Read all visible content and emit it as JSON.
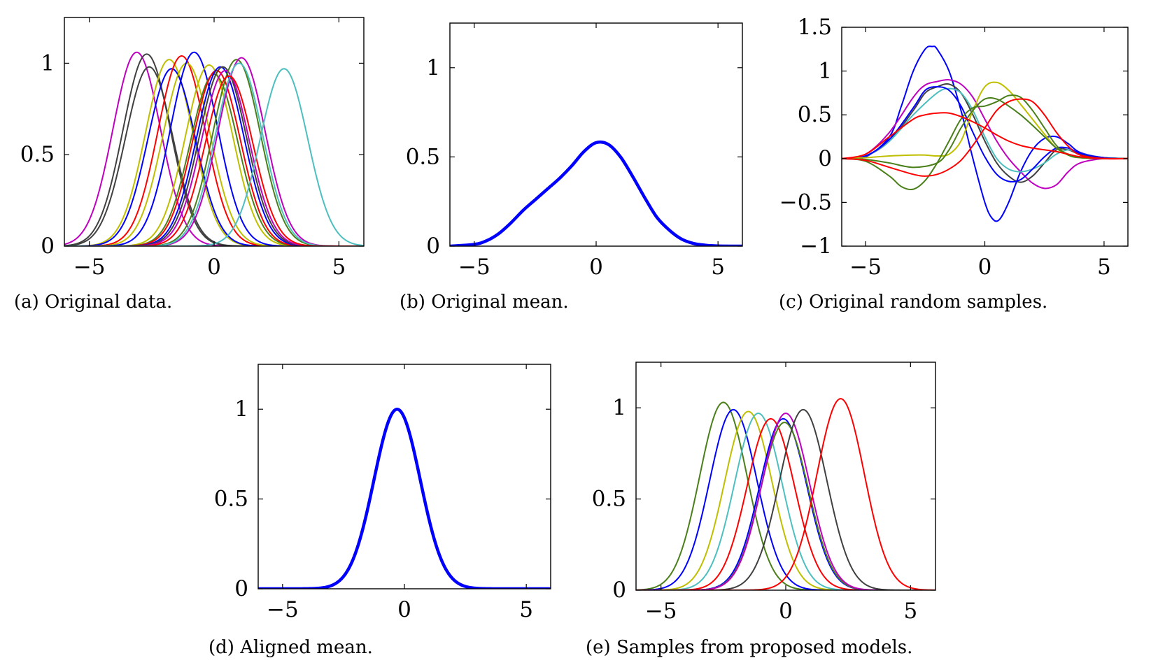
{
  "chart_data": [
    {
      "id": "a",
      "type": "line",
      "caption": "(a) Original data.",
      "xlim": [
        -6,
        6
      ],
      "ylim": [
        0,
        1.25
      ],
      "xticks": [
        -5,
        0,
        5
      ],
      "xtick_labels": [
        "−5",
        "0",
        "5"
      ],
      "yticks": [
        0,
        0.5,
        1
      ],
      "ytick_labels": [
        "0",
        "0.5",
        "1"
      ],
      "line_width": "thin",
      "series": [
        {
          "color": "#bf00bf",
          "peak_x": -3.1,
          "peak_y": 1.06
        },
        {
          "color": "#404040",
          "peak_x": -2.7,
          "peak_y": 1.05
        },
        {
          "color": "#404040",
          "peak_x": -2.6,
          "peak_y": 0.98
        },
        {
          "color": "#bfbf00",
          "peak_x": -1.8,
          "peak_y": 1.02
        },
        {
          "color": "#0000ff",
          "peak_x": -1.7,
          "peak_y": 0.97
        },
        {
          "color": "#ff0000",
          "peak_x": -1.3,
          "peak_y": 1.04
        },
        {
          "color": "#bfbf00",
          "peak_x": -1.1,
          "peak_y": 1.0
        },
        {
          "color": "#0000ff",
          "peak_x": -0.8,
          "peak_y": 1.06
        },
        {
          "color": "#bfbf00",
          "peak_x": -0.2,
          "peak_y": 0.99
        },
        {
          "color": "#4a7f1a",
          "peak_x": 0.0,
          "peak_y": 0.94
        },
        {
          "color": "#ff0000",
          "peak_x": 0.1,
          "peak_y": 0.96
        },
        {
          "color": "#0000ff",
          "peak_x": 0.25,
          "peak_y": 0.98
        },
        {
          "color": "#404040",
          "peak_x": 0.35,
          "peak_y": 0.98
        },
        {
          "color": "#bf00bf",
          "peak_x": 0.45,
          "peak_y": 0.96
        },
        {
          "color": "#4a7f1a",
          "peak_x": 0.9,
          "peak_y": 1.02
        },
        {
          "color": "#bf00bf",
          "peak_x": 1.1,
          "peak_y": 1.03
        },
        {
          "color": "#4dbfbf",
          "peak_x": 1.0,
          "peak_y": 1.0
        },
        {
          "color": "#ff0000",
          "peak_x": 0.6,
          "peak_y": 0.93
        },
        {
          "color": "#4dbfbf",
          "peak_x": 2.8,
          "peak_y": 0.97
        }
      ]
    },
    {
      "id": "b",
      "type": "line",
      "caption": "(b) Original mean.",
      "xlim": [
        -6,
        6
      ],
      "ylim": [
        0,
        1.25
      ],
      "xticks": [
        -5,
        0,
        5
      ],
      "xtick_labels": [
        "−5",
        "0",
        "5"
      ],
      "yticks": [
        0,
        0.5,
        1
      ],
      "ytick_labels": [
        "0",
        "0.5",
        "1"
      ],
      "line_width": "thick",
      "series": [
        {
          "color": "#0000ff",
          "x": [
            -6,
            -5,
            -4.5,
            -4,
            -3.5,
            -3,
            -2.5,
            -2,
            -1.5,
            -1,
            -0.5,
            0,
            0.5,
            1,
            1.5,
            2,
            2.5,
            3,
            3.5,
            4,
            4.5,
            5,
            6
          ],
          "y": [
            0.0,
            0.01,
            0.03,
            0.07,
            0.13,
            0.2,
            0.26,
            0.32,
            0.38,
            0.45,
            0.53,
            0.58,
            0.57,
            0.5,
            0.39,
            0.27,
            0.16,
            0.09,
            0.04,
            0.015,
            0.005,
            0.001,
            0.0
          ]
        }
      ]
    },
    {
      "id": "c",
      "type": "line",
      "caption": "(c) Original random samples.",
      "xlim": [
        -6,
        6
      ],
      "ylim": [
        -1,
        1.5
      ],
      "xticks": [
        -5,
        0,
        5
      ],
      "xtick_labels": [
        "−5",
        "0",
        "5"
      ],
      "yticks": [
        -1,
        -0.5,
        0,
        0.5,
        1,
        1.5
      ],
      "ytick_labels": [
        "−1",
        "−0.5",
        "0",
        "0.5",
        "1",
        "1.5"
      ],
      "line_width": "thin",
      "series": [
        {
          "color": "#0000ff",
          "x": [
            -6,
            -5,
            -4,
            -3.5,
            -3,
            -2.5,
            -2.2,
            -2,
            -1.5,
            -1,
            -0.5,
            0,
            0.3,
            0.6,
            1,
            1.5,
            2,
            2.5,
            3,
            3.5,
            4,
            5,
            6
          ],
          "y": [
            0,
            0.02,
            0.25,
            0.6,
            1.0,
            1.25,
            1.28,
            1.25,
            1.0,
            0.55,
            0.0,
            -0.5,
            -0.68,
            -0.7,
            -0.5,
            -0.15,
            0.1,
            0.23,
            0.25,
            0.17,
            0.07,
            0.01,
            0
          ]
        },
        {
          "color": "#bf00bf",
          "x": [
            -6,
            -5,
            -4,
            -3,
            -2.5,
            -2,
            -1.5,
            -1,
            -0.5,
            0,
            0.5,
            1,
            1.5,
            2,
            2.5,
            3,
            3.5,
            4,
            5,
            6
          ],
          "y": [
            0,
            0.05,
            0.3,
            0.7,
            0.84,
            0.88,
            0.9,
            0.85,
            0.7,
            0.45,
            0.2,
            0.0,
            -0.15,
            -0.28,
            -0.34,
            -0.3,
            -0.15,
            -0.05,
            0,
            0
          ]
        },
        {
          "color": "#404040",
          "x": [
            -6,
            -5,
            -4,
            -3,
            -2.5,
            -2,
            -1.5,
            -1,
            -0.5,
            0,
            0.5,
            1,
            1.5,
            2,
            2.5,
            3,
            3.5,
            4,
            5,
            6
          ],
          "y": [
            0,
            0.03,
            0.2,
            0.55,
            0.75,
            0.82,
            0.85,
            0.75,
            0.5,
            0.2,
            -0.05,
            -0.2,
            -0.27,
            -0.2,
            -0.05,
            0.1,
            0.1,
            0.05,
            0.01,
            0
          ]
        },
        {
          "color": "#4dbfbf",
          "x": [
            -6,
            -5,
            -4,
            -3,
            -2,
            -1.5,
            -1,
            -0.5,
            0,
            0.5,
            1,
            1.5,
            2,
            2.5,
            3,
            3.5,
            4,
            5,
            6
          ],
          "y": [
            0,
            0.03,
            0.2,
            0.5,
            0.75,
            0.8,
            0.75,
            0.55,
            0.25,
            0.0,
            -0.12,
            -0.15,
            -0.12,
            -0.05,
            0.05,
            0.1,
            0.06,
            0.01,
            0
          ]
        },
        {
          "color": "#0000ff",
          "x": [
            -6,
            -5,
            -4,
            -3,
            -2.5,
            -2,
            -1.5,
            -1,
            -0.5,
            0,
            0.5,
            1,
            1.5,
            2,
            2.5,
            3,
            3.5,
            4,
            5,
            6
          ],
          "y": [
            0,
            0.03,
            0.22,
            0.58,
            0.78,
            0.82,
            0.78,
            0.6,
            0.3,
            0.02,
            -0.18,
            -0.26,
            -0.24,
            -0.12,
            0.02,
            0.12,
            0.12,
            0.06,
            0.01,
            0
          ]
        },
        {
          "color": "#bfbf00",
          "x": [
            -6,
            -5,
            -4,
            -3,
            -2.5,
            -2,
            -1.5,
            -1,
            -0.5,
            0,
            0.5,
            1,
            1.5,
            2,
            2.5,
            3,
            3.5,
            4,
            5,
            6
          ],
          "y": [
            0,
            0.01,
            0.03,
            0.04,
            0.04,
            0.03,
            0.05,
            0.2,
            0.55,
            0.82,
            0.87,
            0.78,
            0.62,
            0.45,
            0.28,
            0.12,
            0.04,
            0.01,
            0,
            0
          ]
        },
        {
          "color": "#4a7f1a",
          "x": [
            -6,
            -5,
            -4,
            -3.5,
            -3,
            -2.5,
            -2,
            -1.5,
            -1,
            -0.5,
            0,
            0.5,
            1,
            1.5,
            2,
            2.5,
            3,
            3.5,
            4,
            5,
            6
          ],
          "y": [
            0,
            -0.03,
            -0.2,
            -0.32,
            -0.35,
            -0.25,
            -0.05,
            0.2,
            0.45,
            0.58,
            0.6,
            0.65,
            0.72,
            0.7,
            0.55,
            0.35,
            0.15,
            0.04,
            0.01,
            0,
            0
          ]
        },
        {
          "color": "#4a7f1a",
          "x": [
            -6,
            -5,
            -4,
            -3,
            -2,
            -1.5,
            -1,
            -0.5,
            0,
            0.5,
            1,
            1.5,
            2,
            2.5,
            3,
            3.5,
            4,
            5,
            6
          ],
          "y": [
            0,
            -0.01,
            -0.05,
            -0.1,
            -0.05,
            0.1,
            0.35,
            0.55,
            0.68,
            0.68,
            0.6,
            0.5,
            0.38,
            0.25,
            0.12,
            0.05,
            0.02,
            0,
            0
          ]
        },
        {
          "color": "#ff0000",
          "x": [
            -6,
            -5,
            -4,
            -3,
            -2.5,
            -2,
            -1.5,
            -1,
            -0.5,
            0,
            0.5,
            1,
            1.5,
            2,
            2.5,
            3,
            3.5,
            4,
            5,
            6
          ],
          "y": [
            0,
            0.05,
            0.25,
            0.45,
            0.5,
            0.52,
            0.52,
            0.48,
            0.42,
            0.35,
            0.27,
            0.2,
            0.15,
            0.12,
            0.1,
            0.08,
            0.05,
            0.02,
            0,
            0
          ]
        },
        {
          "color": "#ff0000",
          "x": [
            -6,
            -5,
            -4,
            -3,
            -2.5,
            -2,
            -1.5,
            -1,
            -0.5,
            0,
            0.5,
            1,
            1.5,
            2,
            2.5,
            3,
            3.5,
            4,
            5,
            6
          ],
          "y": [
            0,
            -0.02,
            -0.1,
            -0.18,
            -0.2,
            -0.18,
            -0.12,
            -0.02,
            0.15,
            0.35,
            0.55,
            0.65,
            0.68,
            0.65,
            0.5,
            0.3,
            0.14,
            0.04,
            0,
            0
          ]
        }
      ]
    },
    {
      "id": "d",
      "type": "line",
      "caption": "(d) Aligned mean.",
      "xlim": [
        -6,
        6
      ],
      "ylim": [
        0,
        1.25
      ],
      "xticks": [
        -5,
        0,
        5
      ],
      "xtick_labels": [
        "−5",
        "0",
        "5"
      ],
      "yticks": [
        0,
        0.5,
        1
      ],
      "ytick_labels": [
        "0",
        "0.5",
        "1"
      ],
      "line_width": "thick",
      "series": [
        {
          "color": "#0000ff",
          "peak_x": -0.3,
          "peak_y": 1.0
        }
      ]
    },
    {
      "id": "e",
      "type": "line",
      "caption": "(e) Samples from proposed models.",
      "xlim": [
        -6,
        6
      ],
      "ylim": [
        0,
        1.25
      ],
      "xticks": [
        -5,
        0,
        5
      ],
      "xtick_labels": [
        "−5",
        "0",
        "5"
      ],
      "yticks": [
        0,
        0.5,
        1
      ],
      "ytick_labels": [
        "0",
        "0.5",
        "1"
      ],
      "line_width": "thin",
      "series": [
        {
          "color": "#4a7f1a",
          "peak_x": -2.5,
          "peak_y": 1.03
        },
        {
          "color": "#0000ff",
          "peak_x": -2.1,
          "peak_y": 0.99
        },
        {
          "color": "#bfbf00",
          "peak_x": -1.5,
          "peak_y": 0.98
        },
        {
          "color": "#4dbfbf",
          "peak_x": -1.1,
          "peak_y": 0.97
        },
        {
          "color": "#ff0000",
          "peak_x": -0.6,
          "peak_y": 0.94
        },
        {
          "color": "#0000ff",
          "peak_x": -0.1,
          "peak_y": 0.94
        },
        {
          "color": "#4a7f1a",
          "peak_x": -0.05,
          "peak_y": 0.92
        },
        {
          "color": "#bf00bf",
          "peak_x": 0.0,
          "peak_y": 0.97
        },
        {
          "color": "#404040",
          "peak_x": 0.7,
          "peak_y": 0.99
        },
        {
          "color": "#ff0000",
          "peak_x": 2.2,
          "peak_y": 1.05
        }
      ]
    }
  ]
}
